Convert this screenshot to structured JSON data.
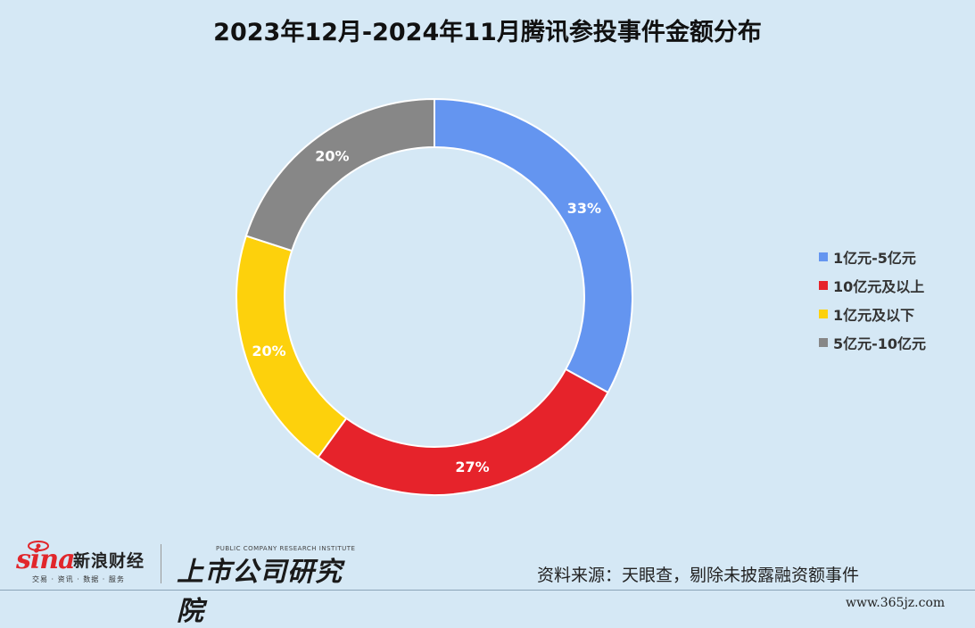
{
  "chart_data": {
    "type": "pie",
    "title": "2023年12月-2024年11月腾讯参投事件金额分布",
    "series": [
      {
        "name": "1亿元-5亿元",
        "value": 33,
        "label": "33%",
        "color": "#6495f0"
      },
      {
        "name": "10亿元及以上",
        "value": 27,
        "label": "27%",
        "color": "#e6232b"
      },
      {
        "name": "1亿元及以下",
        "value": 20,
        "label": "20%",
        "color": "#fdd10c"
      },
      {
        "name": "5亿元-10亿元",
        "value": 20,
        "label": "20%",
        "color": "#878787"
      }
    ],
    "legend_position": "right",
    "donut": true
  },
  "footer": {
    "sina_logo": "sina",
    "sina_name": "新浪财经",
    "sina_sub": "交易 · 资讯 · 数据 · 服务",
    "institute": "上市公司研究院",
    "institute_en": "PUBLIC COMPANY RESEARCH INSTITUTE",
    "source": "资料来源：天眼查，剔除未披露融资额事件",
    "watermark": "www.365jz.com"
  }
}
